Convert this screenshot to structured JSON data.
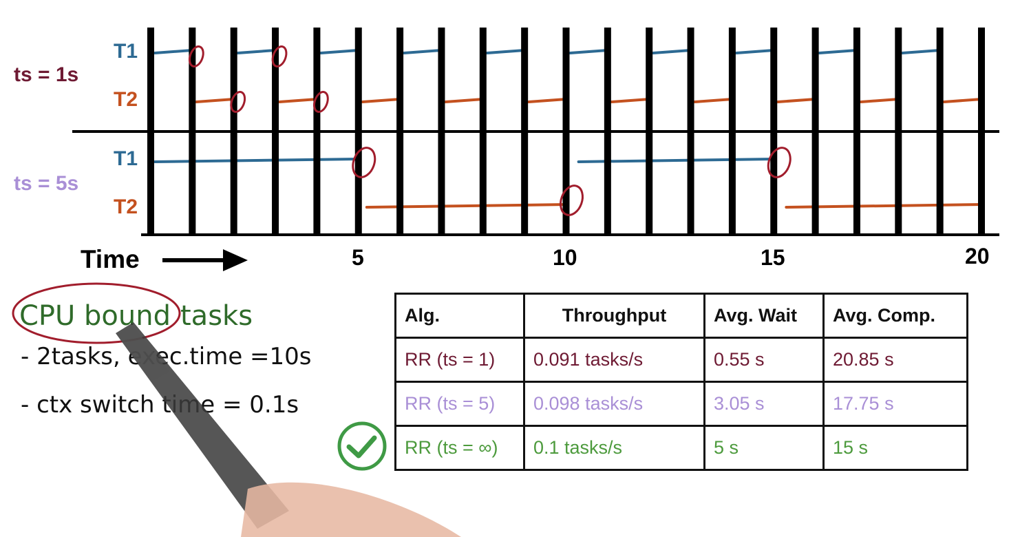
{
  "timeline": {
    "tick_labels": [
      {
        "t": 5,
        "label": "5"
      },
      {
        "t": 10,
        "label": "10"
      },
      {
        "t": 15,
        "label": "15"
      },
      {
        "t": 20,
        "label": "20"
      }
    ],
    "time_label": "Time",
    "sections": [
      {
        "label": "ts = 1s",
        "color": "#6e1a33",
        "rows": [
          {
            "task": "T1",
            "color": "#2d6a93",
            "segments": [
              [
                0.1,
                1.0
              ],
              [
                2.1,
                3.0
              ],
              [
                4.1,
                5.0
              ],
              [
                6.1,
                7.0
              ],
              [
                8.1,
                9.0
              ],
              [
                10.1,
                11.0
              ],
              [
                12.1,
                13.0
              ],
              [
                14.1,
                15.0
              ],
              [
                16.1,
                17.0
              ],
              [
                18.1,
                19.0
              ]
            ]
          },
          {
            "task": "T2",
            "color": "#c4511f",
            "segments": [
              [
                1.1,
                2.0
              ],
              [
                3.1,
                4.0
              ],
              [
                5.1,
                6.0
              ],
              [
                7.1,
                8.0
              ],
              [
                9.1,
                10.0
              ],
              [
                11.1,
                12.0
              ],
              [
                13.1,
                14.0
              ],
              [
                15.1,
                16.0
              ],
              [
                17.1,
                18.0
              ],
              [
                19.1,
                20.0
              ]
            ]
          }
        ],
        "switch_marks": [
          1.0,
          2.0,
          3.0,
          4.0
        ]
      },
      {
        "label": "ts = 5s",
        "color": "#a98fd6",
        "rows": [
          {
            "task": "T1",
            "color": "#2d6a93",
            "segments": [
              [
                0.1,
                5.0
              ],
              [
                10.3,
                15.0
              ]
            ]
          },
          {
            "task": "T2",
            "color": "#c4511f",
            "segments": [
              [
                5.2,
                10.0
              ],
              [
                15.3,
                20.0
              ]
            ]
          }
        ],
        "switch_marks": [
          5.0,
          10.0,
          15.0
        ]
      }
    ]
  },
  "notes": {
    "heading_circled": "CPU bound",
    "heading_rest": "tasks",
    "lines": [
      "- 2tasks, exec.time =10s",
      "- ctx switch time = 0.1s"
    ]
  },
  "table": {
    "headers": [
      "Alg.",
      "Throughput",
      "Avg. Wait",
      "Avg. Comp."
    ],
    "rows": [
      {
        "cells": [
          "RR (ts = 1)",
          "0.091 tasks/s",
          "0.55 s",
          "20.85 s"
        ],
        "color": "#6e1a33",
        "check": false
      },
      {
        "cells": [
          "RR (ts = 5)",
          "0.098 tasks/s",
          "3.05 s",
          "17.75 s"
        ],
        "color": "#a98fd6",
        "check": false
      },
      {
        "cells": [
          "RR (ts = ∞)",
          "0.1 tasks/s",
          "5 s",
          "15 s"
        ],
        "color": "#4c9a3c",
        "check": true
      }
    ]
  },
  "colors": {
    "bars": "#000000",
    "circle_marks": "#a11d2c",
    "checkmark": "#3f9a45",
    "notes_text": "#111111",
    "notes_heading": "#2f6b2a"
  },
  "icons": [
    "checkmark-icon",
    "arrow-right-icon",
    "marker-pen"
  ]
}
